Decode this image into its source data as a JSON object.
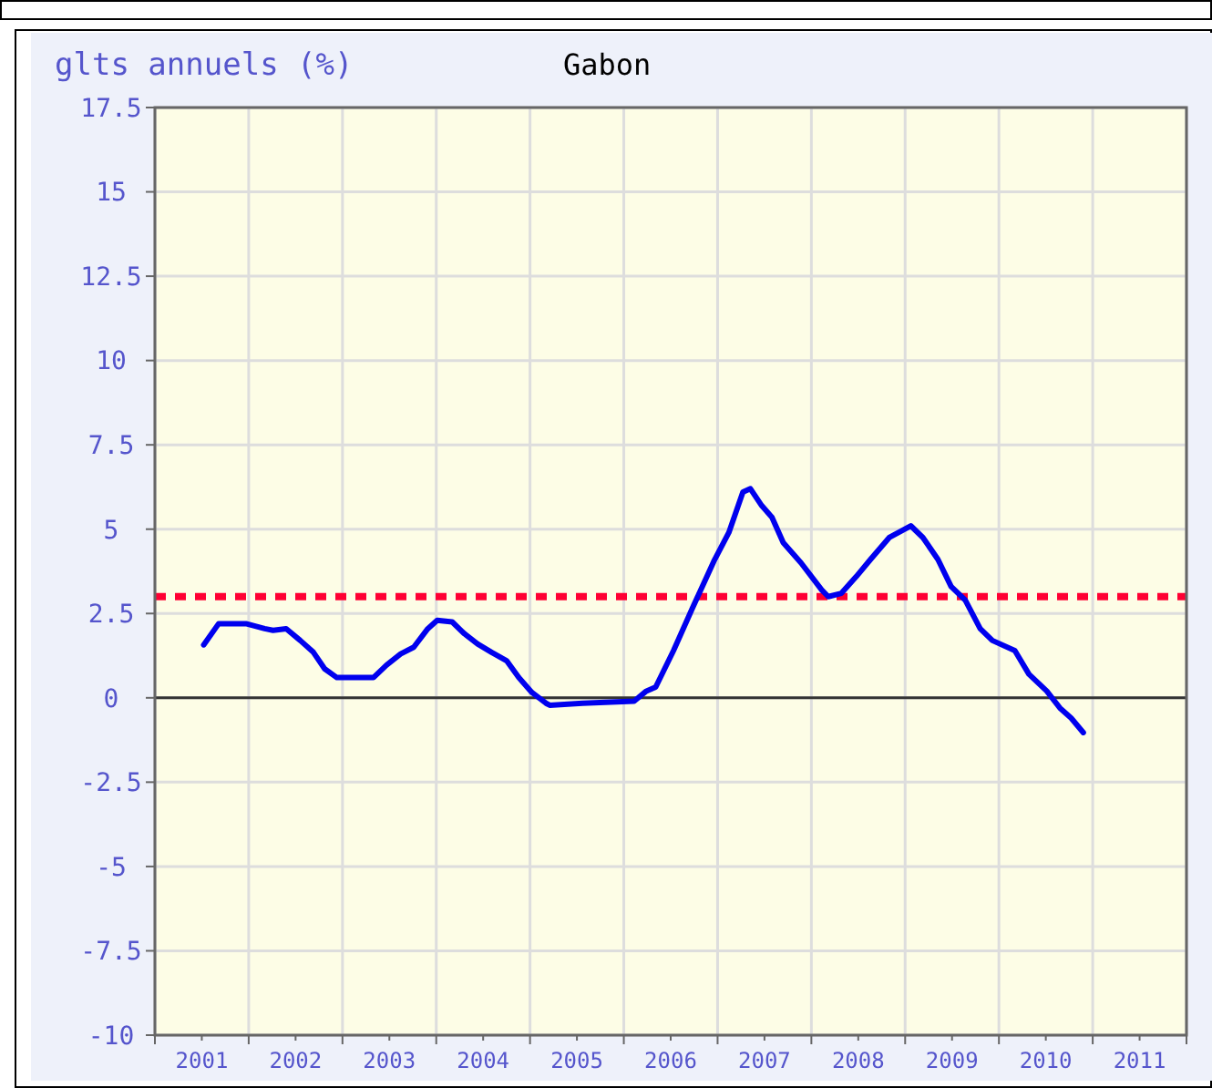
{
  "chart_data": {
    "type": "line",
    "title": "Gabon",
    "ylabel": "glts annuels (%)",
    "xlim": [
      2001,
      2012
    ],
    "xticks": [
      {
        "value": 2001,
        "label": null
      },
      {
        "value": 2001.5,
        "label": "2001"
      },
      {
        "value": 2002,
        "label": null
      },
      {
        "value": 2002.5,
        "label": "2002"
      },
      {
        "value": 2003,
        "label": null
      },
      {
        "value": 2003.5,
        "label": "2003"
      },
      {
        "value": 2004,
        "label": null
      },
      {
        "value": 2004.5,
        "label": "2004"
      },
      {
        "value": 2005,
        "label": null
      },
      {
        "value": 2005.5,
        "label": "2005"
      },
      {
        "value": 2006,
        "label": null
      },
      {
        "value": 2006.5,
        "label": "2006"
      },
      {
        "value": 2007,
        "label": null
      },
      {
        "value": 2007.5,
        "label": "2007"
      },
      {
        "value": 2008,
        "label": null
      },
      {
        "value": 2008.5,
        "label": "2008"
      },
      {
        "value": 2009,
        "label": null
      },
      {
        "value": 2009.5,
        "label": "2009"
      },
      {
        "value": 2010,
        "label": null
      },
      {
        "value": 2010.5,
        "label": "2010"
      },
      {
        "value": 2011,
        "label": null
      },
      {
        "value": 2011.5,
        "label": "2011"
      },
      {
        "value": 2012,
        "label": null
      }
    ],
    "ylim": [
      -10,
      17.5
    ],
    "yticks": [
      -10,
      -7.5,
      -5,
      -2.5,
      0,
      2.5,
      5,
      7.5,
      10,
      12.5,
      15,
      17.5
    ],
    "grid": true,
    "marker": "none",
    "line_style": "solid",
    "ref_lines": [
      {
        "axis": "y",
        "value": 3,
        "color": "#ff0033",
        "line_style": "dotted"
      },
      {
        "axis": "y",
        "value": 0,
        "color": "#333333",
        "line_style": "solid"
      }
    ],
    "series": [
      {
        "color": "#0000ee",
        "x": [
          2001.52,
          2001.68,
          2001.97,
          2002.17,
          2002.26,
          2002.4,
          2002.55,
          2002.69,
          2002.81,
          2002.94,
          2003.33,
          2003.47,
          2003.62,
          2003.76,
          2003.91,
          2004.01,
          2004.17,
          2004.3,
          2004.44,
          2004.59,
          2004.75,
          2004.88,
          2005.02,
          2005.17,
          2005.21,
          2005.56,
          2006.11,
          2006.24,
          2006.34,
          2006.53,
          2006.73,
          2006.96,
          2007.12,
          2007.27,
          2007.35,
          2007.47,
          2007.58,
          2007.7,
          2007.89,
          2008.11,
          2008.18,
          2008.32,
          2008.48,
          2008.63,
          2008.83,
          2009.06,
          2009.19,
          2009.35,
          2009.49,
          2009.64,
          2009.8,
          2009.93,
          2010.17,
          2010.32,
          2010.51,
          2010.65,
          2010.77,
          2010.9
        ],
        "values": [
          1.57,
          2.2,
          2.2,
          2.05,
          2.0,
          2.05,
          1.7,
          1.35,
          0.86,
          0.6,
          0.6,
          0.97,
          1.3,
          1.5,
          2.05,
          2.3,
          2.25,
          1.9,
          1.6,
          1.35,
          1.1,
          0.6,
          0.16,
          -0.16,
          -0.22,
          -0.16,
          -0.1,
          0.2,
          0.32,
          1.4,
          2.65,
          4.05,
          4.9,
          6.1,
          6.2,
          5.7,
          5.35,
          4.6,
          4.0,
          3.2,
          3.0,
          3.1,
          3.6,
          4.1,
          4.75,
          5.1,
          4.75,
          4.1,
          3.3,
          2.9,
          2.05,
          1.7,
          1.4,
          0.7,
          0.2,
          -0.3,
          -0.6,
          -1.03
        ]
      }
    ]
  }
}
